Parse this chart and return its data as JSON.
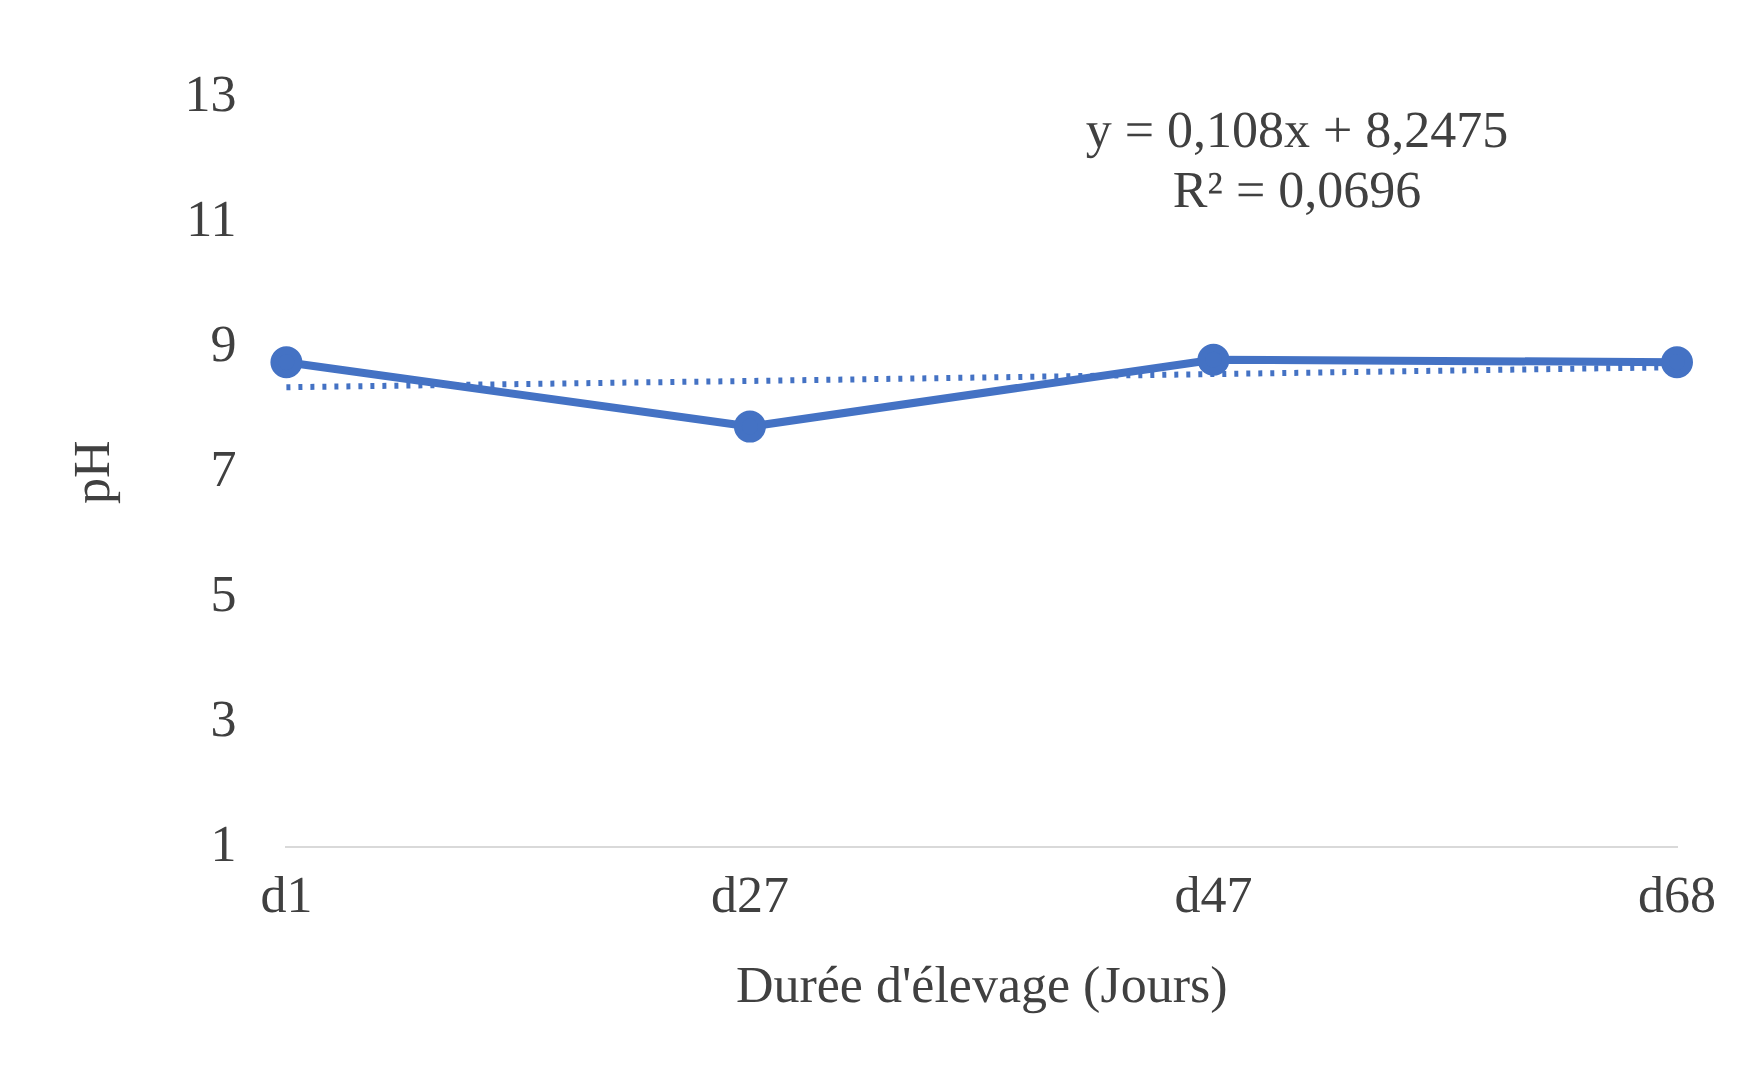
{
  "chart_data": {
    "type": "line",
    "xlabel": "Durée d'élevage (Jours)",
    "ylabel": "pH",
    "categories": [
      "d1",
      "d27",
      "d47",
      "d68"
    ],
    "series": [
      {
        "color": "#4472c4",
        "values": [
          8.76,
          7.73,
          8.8,
          8.76
        ],
        "marker": "circle",
        "line_style": "solid"
      },
      {
        "type": "line",
        "color": "#4472c4",
        "values": [
          8.36,
          8.46,
          8.57,
          8.68
        ],
        "marker": "none",
        "line_style": "dotted"
      }
    ],
    "ylim": [
      1,
      13
    ],
    "yticks": [
      1,
      3,
      5,
      7,
      9,
      11,
      13
    ],
    "grid": false,
    "legend": false,
    "annotations": [
      "y = 0,108x + 8,2475",
      "R² = 0,0696"
    ]
  }
}
